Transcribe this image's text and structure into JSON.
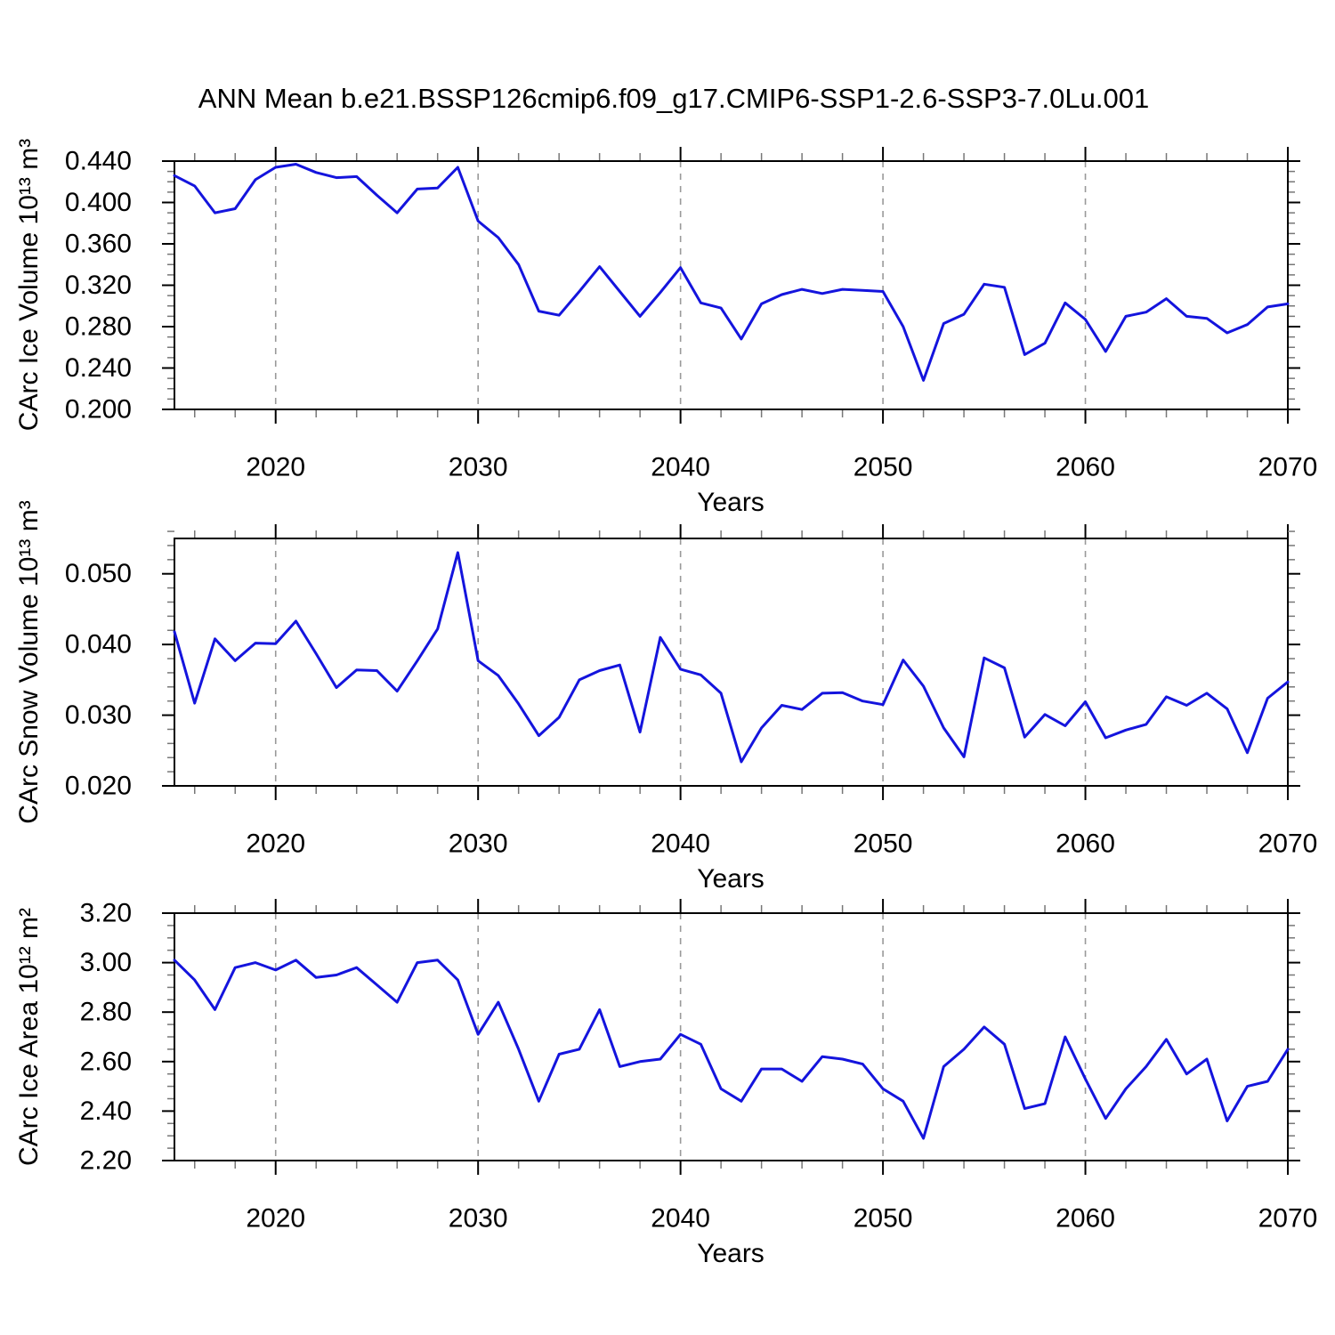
{
  "title": "ANN Mean b.e21.BSSP126cmip6.f09_g17.CMIP6-SSP1-2.6-SSP3-7.0Lu.001",
  "line_color": "#1414dd",
  "grid_color": "#999999",
  "frame_color": "#000000",
  "minor_tick_color": "#777777",
  "chart_data": [
    {
      "type": "line",
      "name": "ice-volume",
      "ylabel": "CArc Ice Volume 10¹³ m³",
      "xlabel": "Years",
      "ylim": [
        0.2,
        0.44
      ],
      "yticks": [
        0.2,
        0.24,
        0.28,
        0.32,
        0.36,
        0.4,
        0.44
      ],
      "ytick_labels": [
        "0.200",
        "0.240",
        "0.280",
        "0.320",
        "0.360",
        "0.400",
        "0.440"
      ],
      "y_minor_step": 0.01,
      "xlim": [
        2015,
        2070
      ],
      "xticks": [
        2020,
        2030,
        2040,
        2050,
        2060,
        2070
      ],
      "xtick_labels": [
        "2020",
        "2030",
        "2040",
        "2050",
        "2060",
        "2070"
      ],
      "x_minor_step": 2,
      "grid_years": [
        2020,
        2030,
        2040,
        2050,
        2060
      ],
      "x": [
        2015,
        2016,
        2017,
        2018,
        2019,
        2020,
        2021,
        2022,
        2023,
        2024,
        2025,
        2026,
        2027,
        2028,
        2029,
        2030,
        2031,
        2032,
        2033,
        2034,
        2035,
        2036,
        2037,
        2038,
        2039,
        2040,
        2041,
        2042,
        2043,
        2044,
        2045,
        2046,
        2047,
        2048,
        2049,
        2050,
        2051,
        2052,
        2053,
        2054,
        2055,
        2056,
        2057,
        2058,
        2059,
        2060,
        2061,
        2062,
        2063,
        2064,
        2065,
        2066,
        2067,
        2068,
        2069,
        2070
      ],
      "values": [
        0.426,
        0.416,
        0.39,
        0.394,
        0.422,
        0.434,
        0.437,
        0.429,
        0.424,
        0.425,
        0.407,
        0.39,
        0.413,
        0.414,
        0.434,
        0.382,
        0.366,
        0.34,
        0.295,
        0.291,
        0.314,
        0.338,
        0.314,
        0.29,
        0.313,
        0.337,
        0.303,
        0.298,
        0.268,
        0.302,
        0.311,
        0.316,
        0.312,
        0.316,
        0.315,
        0.314,
        0.28,
        0.228,
        0.283,
        0.292,
        0.321,
        0.318,
        0.253,
        0.264,
        0.303,
        0.287,
        0.256,
        0.29,
        0.294,
        0.307,
        0.29,
        0.288,
        0.274,
        0.282,
        0.299,
        0.302
      ]
    },
    {
      "type": "line",
      "name": "snow-volume",
      "ylabel": "CArc Snow Volume 10¹³ m³",
      "xlabel": "Years",
      "ylim": [
        0.02,
        0.055
      ],
      "yticks": [
        0.02,
        0.03,
        0.04,
        0.05
      ],
      "ytick_labels": [
        "0.020",
        "0.030",
        "0.040",
        "0.050"
      ],
      "y_minor_step": 0.002,
      "xlim": [
        2015,
        2070
      ],
      "xticks": [
        2020,
        2030,
        2040,
        2050,
        2060,
        2070
      ],
      "xtick_labels": [
        "2020",
        "2030",
        "2040",
        "2050",
        "2060",
        "2070"
      ],
      "x_minor_step": 2,
      "grid_years": [
        2020,
        2030,
        2040,
        2050,
        2060
      ],
      "x": [
        2015,
        2016,
        2017,
        2018,
        2019,
        2020,
        2021,
        2022,
        2023,
        2024,
        2025,
        2026,
        2027,
        2028,
        2029,
        2030,
        2031,
        2032,
        2033,
        2034,
        2035,
        2036,
        2037,
        2038,
        2039,
        2040,
        2041,
        2042,
        2043,
        2044,
        2045,
        2046,
        2047,
        2048,
        2049,
        2050,
        2051,
        2052,
        2053,
        2054,
        2055,
        2056,
        2057,
        2058,
        2059,
        2060,
        2061,
        2062,
        2063,
        2064,
        2065,
        2066,
        2067,
        2068,
        2069,
        2070
      ],
      "values": [
        0.0418,
        0.0317,
        0.0408,
        0.0377,
        0.0402,
        0.0401,
        0.0433,
        0.0387,
        0.0339,
        0.0364,
        0.0363,
        0.0334,
        0.0377,
        0.0422,
        0.053,
        0.0377,
        0.0356,
        0.0316,
        0.0271,
        0.0297,
        0.035,
        0.0363,
        0.0371,
        0.0276,
        0.041,
        0.0365,
        0.0357,
        0.0331,
        0.0234,
        0.0282,
        0.0314,
        0.0308,
        0.0331,
        0.0332,
        0.032,
        0.0315,
        0.0378,
        0.0341,
        0.0282,
        0.0241,
        0.0381,
        0.0367,
        0.0269,
        0.0301,
        0.0285,
        0.0319,
        0.0268,
        0.0279,
        0.0287,
        0.0326,
        0.0314,
        0.0331,
        0.0309,
        0.0247,
        0.0324,
        0.0347
      ]
    },
    {
      "type": "line",
      "name": "ice-area",
      "ylabel": "CArc Ice Area 10¹² m²",
      "xlabel": "Years",
      "ylim": [
        2.2,
        3.2
      ],
      "yticks": [
        2.2,
        2.4,
        2.6,
        2.8,
        3.0,
        3.2
      ],
      "ytick_labels": [
        "2.20",
        "2.40",
        "2.60",
        "2.80",
        "3.00",
        "3.20"
      ],
      "y_minor_step": 0.05,
      "xlim": [
        2015,
        2070
      ],
      "xticks": [
        2020,
        2030,
        2040,
        2050,
        2060,
        2070
      ],
      "xtick_labels": [
        "2020",
        "2030",
        "2040",
        "2050",
        "2060",
        "2070"
      ],
      "x_minor_step": 2,
      "grid_years": [
        2020,
        2030,
        2040,
        2050,
        2060
      ],
      "x": [
        2015,
        2016,
        2017,
        2018,
        2019,
        2020,
        2021,
        2022,
        2023,
        2024,
        2025,
        2026,
        2027,
        2028,
        2029,
        2030,
        2031,
        2032,
        2033,
        2034,
        2035,
        2036,
        2037,
        2038,
        2039,
        2040,
        2041,
        2042,
        2043,
        2044,
        2045,
        2046,
        2047,
        2048,
        2049,
        2050,
        2051,
        2052,
        2053,
        2054,
        2055,
        2056,
        2057,
        2058,
        2059,
        2060,
        2061,
        2062,
        2063,
        2064,
        2065,
        2066,
        2067,
        2068,
        2069,
        2070
      ],
      "values": [
        3.01,
        2.93,
        2.81,
        2.98,
        3.0,
        2.97,
        3.01,
        2.94,
        2.95,
        2.98,
        2.91,
        2.84,
        3.0,
        3.01,
        2.93,
        2.71,
        2.84,
        2.65,
        2.44,
        2.63,
        2.65,
        2.81,
        2.58,
        2.6,
        2.61,
        2.71,
        2.67,
        2.49,
        2.44,
        2.57,
        2.57,
        2.52,
        2.62,
        2.61,
        2.59,
        2.49,
        2.44,
        2.29,
        2.58,
        2.65,
        2.74,
        2.67,
        2.41,
        2.43,
        2.7,
        2.53,
        2.37,
        2.49,
        2.58,
        2.69,
        2.55,
        2.61,
        2.36,
        2.5,
        2.52,
        2.65
      ]
    }
  ]
}
